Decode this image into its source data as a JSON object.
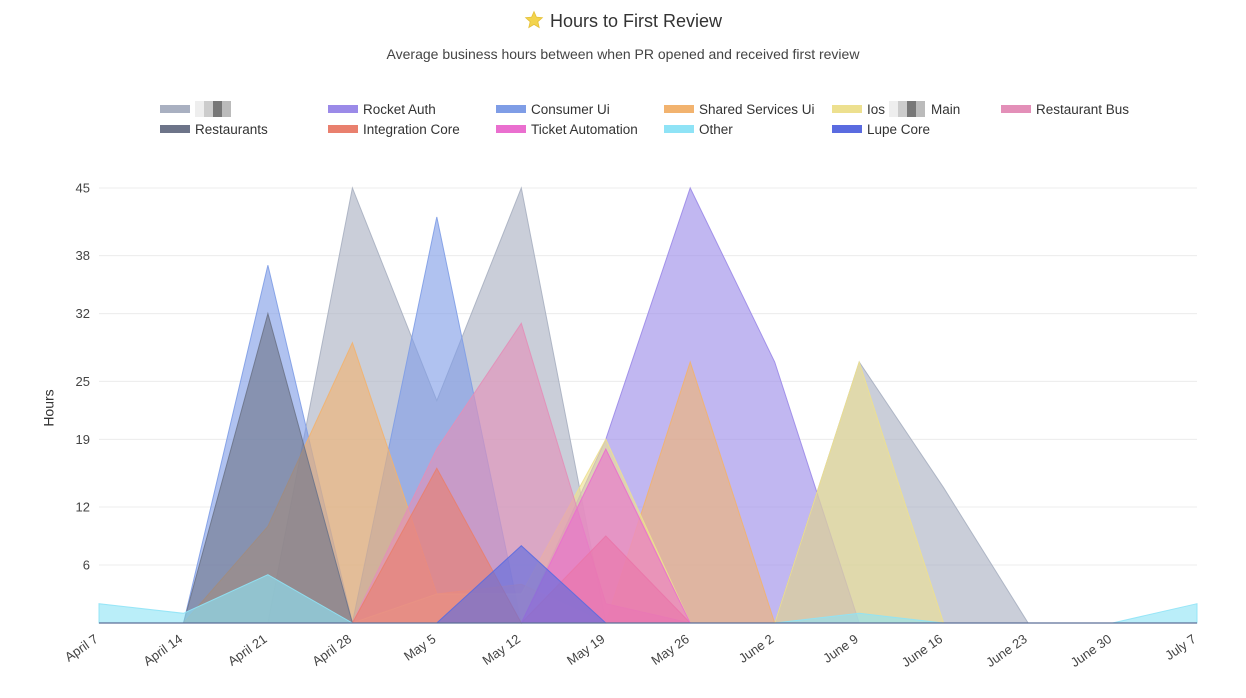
{
  "header": {
    "title": "Hours to First Review",
    "subtitle": "Average business hours between when PR opened and received first review"
  },
  "chart_data": {
    "type": "area",
    "title": "Hours to First Review",
    "subtitle": "Average business hours between when PR opened and received first review",
    "xlabel": "",
    "ylabel": "Hours",
    "ylim": [
      0,
      45
    ],
    "yticks": [
      6,
      12,
      19,
      25,
      32,
      38,
      45
    ],
    "x": [
      "April 7",
      "April 14",
      "April 21",
      "April 28",
      "May 5",
      "May 12",
      "May 19",
      "May 26",
      "June 2",
      "June 9",
      "June 16",
      "June 23",
      "June 30",
      "July 7"
    ],
    "grid": true,
    "legend_position": "top",
    "series": [
      {
        "name": "",
        "color": "#a9b0c1",
        "values": [
          0,
          0,
          0,
          45,
          23,
          45,
          0,
          0,
          0,
          27,
          14,
          0,
          0,
          0
        ]
      },
      {
        "name": "Rocket Auth",
        "color": "#9b8ae8",
        "values": [
          0,
          0,
          0,
          0,
          0,
          0,
          19,
          45,
          27,
          0,
          0,
          0,
          0,
          0
        ]
      },
      {
        "name": "Consumer Ui",
        "color": "#7f9de6",
        "values": [
          0,
          0,
          37,
          0,
          42,
          0,
          0,
          0,
          0,
          0,
          0,
          0,
          0,
          0
        ]
      },
      {
        "name": "Shared Services Ui",
        "color": "#f2b36f",
        "values": [
          0,
          0,
          10,
          29,
          3,
          4,
          0,
          27,
          0,
          0,
          0,
          0,
          0,
          0
        ]
      },
      {
        "name": "Ios Main",
        "color": "#ede08f",
        "values": [
          0,
          0,
          0,
          0,
          3,
          3,
          19,
          0,
          0,
          27,
          0,
          0,
          0,
          0
        ]
      },
      {
        "name": "Restaurant Bus",
        "color": "#e38fb8",
        "values": [
          0,
          0,
          0,
          0,
          18,
          31,
          2,
          0,
          0,
          0,
          0,
          0,
          0,
          0
        ]
      },
      {
        "name": "Restaurants",
        "color": "#6d7489",
        "values": [
          0,
          0,
          32,
          0,
          0,
          0,
          0,
          0,
          0,
          0,
          0,
          0,
          0,
          0
        ]
      },
      {
        "name": "Integration Core",
        "color": "#e9806e",
        "values": [
          0,
          0,
          0,
          0,
          16,
          0,
          9,
          0,
          0,
          0,
          0,
          0,
          0,
          0
        ]
      },
      {
        "name": "Ticket Automation",
        "color": "#ea6fcf",
        "values": [
          0,
          0,
          0,
          0,
          0,
          0,
          18,
          0,
          0,
          0,
          0,
          0,
          0,
          0
        ]
      },
      {
        "name": "Other",
        "color": "#8fe3f6",
        "values": [
          2,
          1,
          5,
          0,
          0,
          0,
          0,
          0,
          0,
          1,
          0,
          0,
          0,
          2
        ]
      },
      {
        "name": "Lupe Core",
        "color": "#5a6be0",
        "values": [
          0,
          0,
          0,
          0,
          0,
          8,
          0,
          0,
          0,
          0,
          0,
          0,
          0,
          0
        ]
      }
    ]
  },
  "legend": {
    "items": [
      {
        "label": "",
        "color": "#a9b0c1",
        "redacted": true
      },
      {
        "label": "Rocket Auth",
        "color": "#9b8ae8"
      },
      {
        "label": "Consumer Ui",
        "color": "#7f9de6"
      },
      {
        "label": "Shared Services Ui",
        "color": "#f2b36f"
      },
      {
        "label_prefix": "Ios",
        "label": "Main",
        "color": "#ede08f",
        "redacted_mid": true
      },
      {
        "label": "Restaurant Bus",
        "color": "#e38fb8"
      },
      {
        "label": "Restaurants",
        "color": "#6d7489"
      },
      {
        "label": "Integration Core",
        "color": "#e9806e"
      },
      {
        "label": "Ticket Automation",
        "color": "#ea6fcf"
      },
      {
        "label": "Other",
        "color": "#8fe3f6"
      },
      {
        "label": "Lupe Core",
        "color": "#5a6be0"
      }
    ]
  }
}
